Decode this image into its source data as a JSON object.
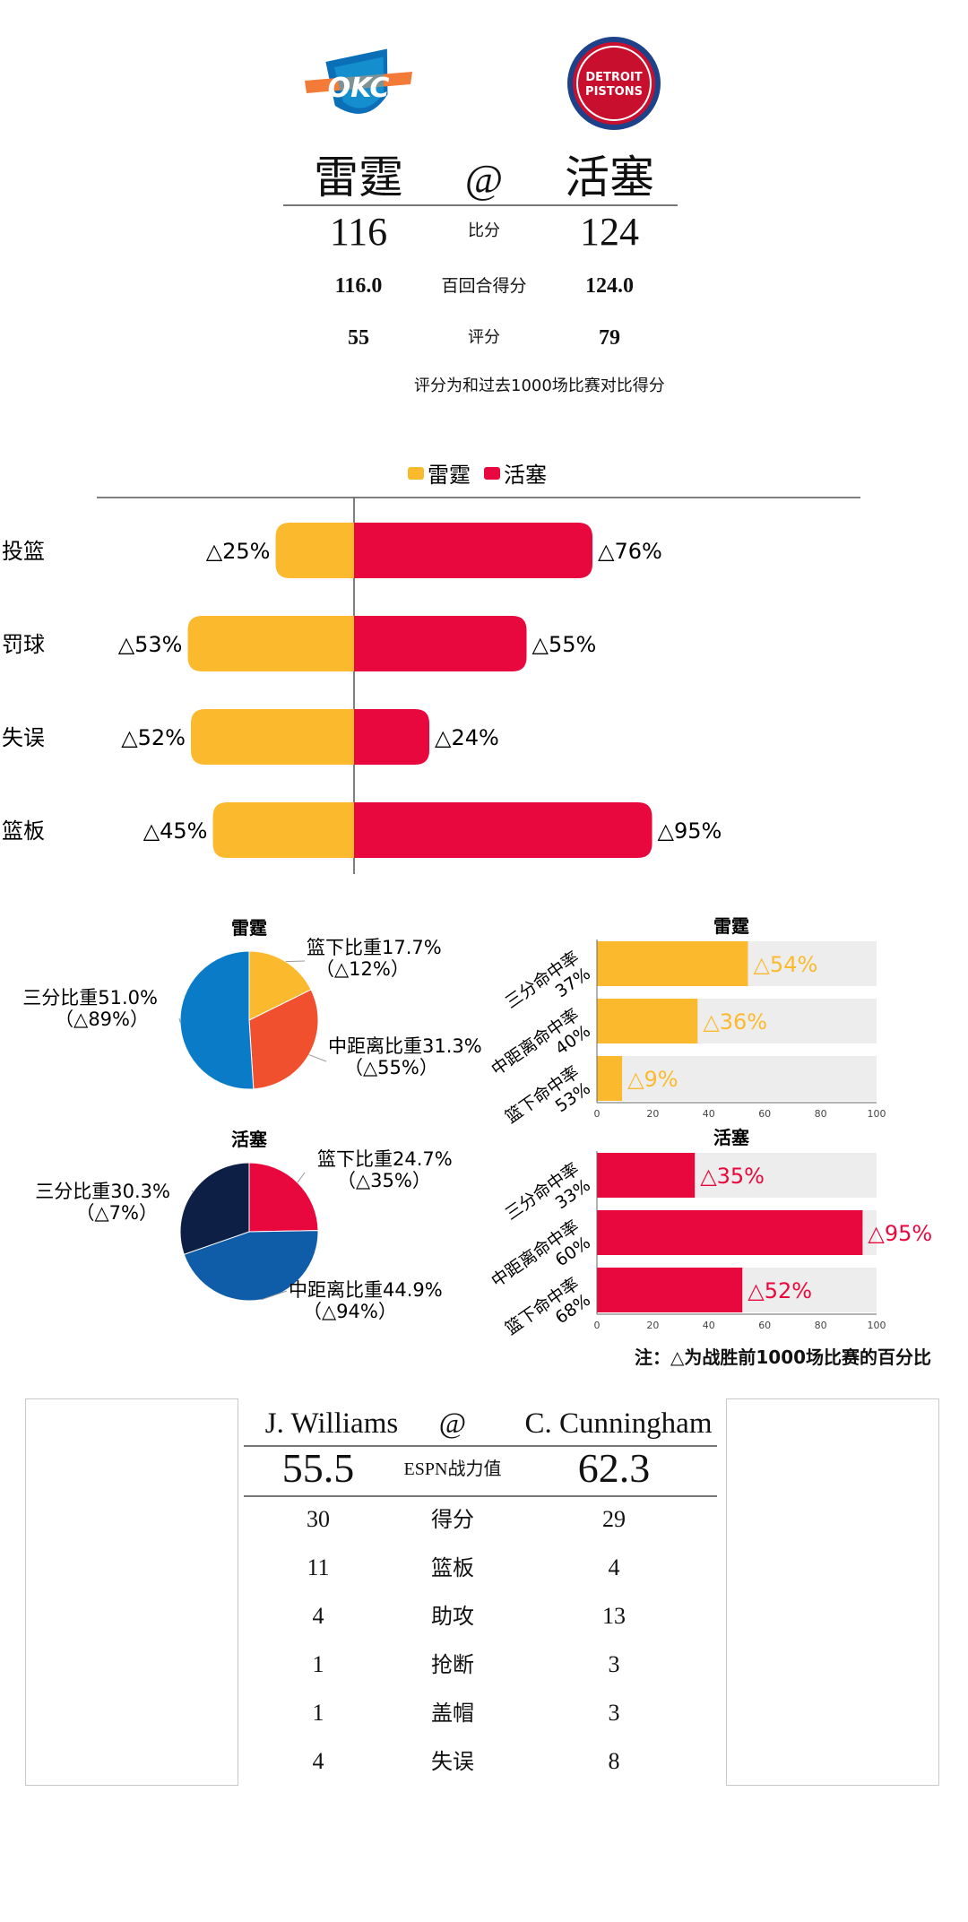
{
  "header": {
    "away_team": "雷霆",
    "at_symbol": "@",
    "home_team": "活塞",
    "home_logo_text_1": "DETROIT",
    "home_logo_text_2": "PISTONS",
    "away_logo_text": "OKC",
    "rows": [
      {
        "away": "116",
        "label": "比分",
        "home": "124"
      },
      {
        "away": "116.0",
        "label": "百回合得分",
        "home": "124.0"
      },
      {
        "away": "55",
        "label": "评分",
        "home": "79"
      }
    ],
    "note": "评分为和过去1000场比赛对比得分"
  },
  "colors": {
    "away": "#FBBA2E",
    "home": "#E8083E",
    "away_pie_three": "#0A7CC7",
    "away_pie_mid": "#F0502D",
    "home_pie_three": "#0D1F45",
    "home_pie_mid": "#0F5CA8",
    "track": "#EDEDED"
  },
  "chart_data": [
    {
      "type": "bar",
      "orientation": "horizontal-diverging",
      "legend": [
        "雷霆",
        "活塞"
      ],
      "legend_position": "top-center",
      "categories": [
        "投篮",
        "罚球",
        "失误",
        "篮板"
      ],
      "series": [
        {
          "name": "雷霆",
          "values": [
            25,
            53,
            52,
            45
          ],
          "labels": [
            "△25%",
            "△53%",
            "△52%",
            "△45%"
          ]
        },
        {
          "name": "活塞",
          "values": [
            76,
            55,
            24,
            95
          ],
          "labels": [
            "△76%",
            "△55%",
            "△24%",
            "△95%"
          ]
        }
      ]
    },
    {
      "type": "pie",
      "title": "雷霆",
      "slices": [
        {
          "name": "篮下比重17.7%",
          "value": 17.7,
          "sub": "（△12%）"
        },
        {
          "name": "中距离比重31.3%",
          "value": 31.3,
          "sub": "（△55%）"
        },
        {
          "name": "三分比重51.0%",
          "value": 51.0,
          "sub": "（△89%）"
        }
      ]
    },
    {
      "type": "bar",
      "orientation": "horizontal",
      "title": "雷霆",
      "categories": [
        "三分命中率\n37%",
        "中距离命中率\n40%",
        "篮下命中率\n53%"
      ],
      "category_lines": [
        [
          "三分命中率",
          "37%"
        ],
        [
          "中距离命中率",
          "40%"
        ],
        [
          "篮下命中率",
          "53%"
        ]
      ],
      "values": [
        54,
        36,
        9
      ],
      "labels": [
        "△54%",
        "△36%",
        "△9%"
      ],
      "xlim": [
        0,
        100
      ],
      "ticks": [
        "0",
        "20",
        "40",
        "60",
        "80",
        "100"
      ]
    },
    {
      "type": "pie",
      "title": "活塞",
      "slices": [
        {
          "name": "篮下比重24.7%",
          "value": 24.7,
          "sub": "（△35%）"
        },
        {
          "name": "中距离比重44.9%",
          "value": 44.9,
          "sub": "（△94%）"
        },
        {
          "name": "三分比重30.3%",
          "value": 30.3,
          "sub": "（△7%）"
        }
      ]
    },
    {
      "type": "bar",
      "orientation": "horizontal",
      "title": "活塞",
      "categories": [
        "三分命中率\n33%",
        "中距离命中率\n60%",
        "篮下命中率\n68%"
      ],
      "category_lines": [
        [
          "三分命中率",
          "33%"
        ],
        [
          "中距离命中率",
          "60%"
        ],
        [
          "篮下命中率",
          "68%"
        ]
      ],
      "values": [
        35,
        95,
        52
      ],
      "labels": [
        "△35%",
        "△95%",
        "△52%"
      ],
      "xlim": [
        0,
        100
      ],
      "ticks": [
        "0",
        "20",
        "40",
        "60",
        "80",
        "100"
      ]
    }
  ],
  "footnote": "注：△为战胜前1000场比赛的百分比",
  "players": {
    "away_name": "J. Williams",
    "at_symbol": "@",
    "home_name": "C. Cunningham",
    "espn": {
      "away": "55.5",
      "label": "ESPN战力值",
      "home": "62.3"
    },
    "stats": [
      {
        "away": "30",
        "label": "得分",
        "home": "29"
      },
      {
        "away": "11",
        "label": "篮板",
        "home": "4"
      },
      {
        "away": "4",
        "label": "助攻",
        "home": "13"
      },
      {
        "away": "1",
        "label": "抢断",
        "home": "3"
      },
      {
        "away": "1",
        "label": "盖帽",
        "home": "3"
      },
      {
        "away": "4",
        "label": "失误",
        "home": "8"
      }
    ]
  }
}
